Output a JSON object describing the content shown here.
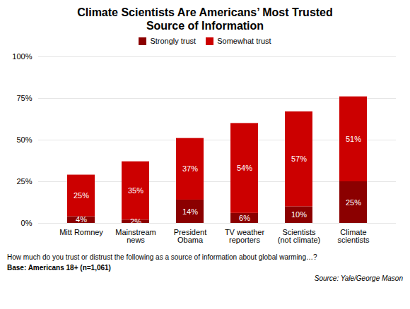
{
  "chart_data": {
    "type": "bar",
    "title": "Climate Scientists Are Americans’ Most Trusted\nSource of Information",
    "categories": [
      "Mitt Romney",
      "Mainstream news",
      "President Obama",
      "TV weather reporters",
      "Scientists (not climate)",
      "Climate scientists"
    ],
    "series": [
      {
        "name": "Strongly trust",
        "color": "#8B0000",
        "values": [
          4,
          2,
          14,
          6,
          10,
          25
        ],
        "value_labels": [
          "4%",
          "2%",
          "14%",
          "6%",
          "10%",
          "25%"
        ]
      },
      {
        "name": "Somewhat trust",
        "color": "#CC0000",
        "values": [
          25,
          35,
          37,
          54,
          57,
          51
        ],
        "value_labels": [
          "25%",
          "35%",
          "37%",
          "54%",
          "57%",
          "51%"
        ]
      }
    ],
    "stacked": true,
    "data_labels": true,
    "ylim": [
      0,
      100
    ],
    "yticks": [
      {
        "value": 0,
        "label": "0%"
      },
      {
        "value": 25,
        "label": "25%"
      },
      {
        "value": 50,
        "label": "50%"
      },
      {
        "value": 75,
        "label": "75%"
      },
      {
        "value": 100,
        "label": "100%"
      }
    ],
    "grid": true,
    "legend": "top",
    "annotations": [
      "How much do you trust or distrust the following as a source of information about global warming…?",
      "Base: Americans 18+ (n=1,061)",
      "Source: Yale/George Mason"
    ]
  }
}
